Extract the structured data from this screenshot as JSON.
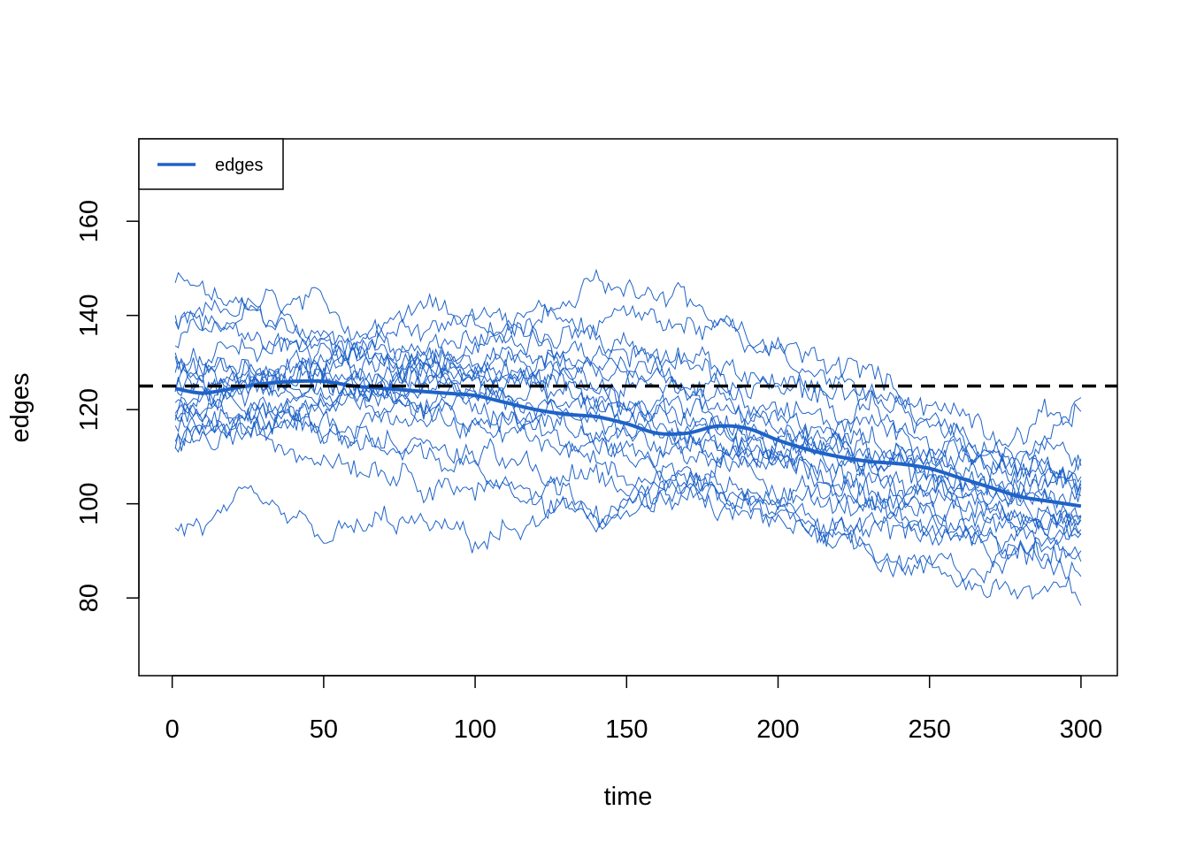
{
  "chart_data": {
    "type": "line",
    "title": "",
    "xlabel": "time",
    "ylabel": "edges",
    "xlim": [
      -11,
      312
    ],
    "ylim": [
      63.5,
      177.5
    ],
    "x_ticks": [
      0,
      50,
      100,
      150,
      200,
      250,
      300
    ],
    "x_tick_labels": [
      "0",
      "50",
      "100",
      "150",
      "200",
      "250",
      "300"
    ],
    "y_ticks": [
      80,
      100,
      120,
      140,
      160
    ],
    "y_tick_labels": [
      "80",
      "100",
      "120",
      "140",
      "160"
    ],
    "grid": false,
    "legend": {
      "position": "top-left",
      "entries": [
        "edges"
      ]
    },
    "target_line": {
      "y": 125,
      "style": "dashed",
      "color": "#000000"
    },
    "colors": {
      "series": "#1f63c8",
      "mean": "#1f63c8",
      "axes": "#000000"
    },
    "simulations": {
      "count": 20,
      "x_range": [
        1,
        300
      ],
      "anchors_x": [
        1,
        25,
        50,
        75,
        100,
        125,
        150,
        175,
        200,
        225,
        250,
        275,
        300
      ],
      "anchors_y": [
        [
          147,
          140,
          135,
          132,
          128,
          124,
          120,
          118,
          115,
          110,
          106,
          102,
          100
        ],
        [
          137,
          142,
          140,
          136,
          132,
          130,
          126,
          122,
          118,
          113,
          108,
          103,
          108
        ],
        [
          125,
          130,
          128,
          124,
          120,
          118,
          114,
          112,
          108,
          103,
          100,
          98,
          96
        ],
        [
          112,
          118,
          122,
          126,
          128,
          126,
          122,
          118,
          114,
          110,
          106,
          102,
          98
        ],
        [
          94,
          98,
          92,
          96,
          92,
          96,
          100,
          102,
          98,
          92,
          86,
          82,
          79
        ],
        [
          120,
          128,
          132,
          130,
          136,
          140,
          134,
          128,
          124,
          120,
          114,
          108,
          105
        ],
        [
          115,
          120,
          118,
          112,
          108,
          104,
          100,
          102,
          98,
          95,
          94,
          96,
          93
        ],
        [
          130,
          126,
          124,
          128,
          132,
          136,
          140,
          138,
          132,
          128,
          122,
          116,
          120
        ],
        [
          122,
          124,
          130,
          136,
          140,
          135,
          130,
          126,
          120,
          116,
          112,
          108,
          102
        ],
        [
          118,
          114,
          112,
          108,
          104,
          100,
          98,
          100,
          96,
          90,
          86,
          88,
          92
        ],
        [
          128,
          132,
          136,
          140,
          138,
          132,
          128,
          122,
          116,
          112,
          106,
          100,
          98
        ],
        [
          113,
          116,
          120,
          124,
          122,
          118,
          112,
          108,
          104,
          100,
          96,
          94,
          90
        ],
        [
          136,
          140,
          134,
          128,
          124,
          122,
          118,
          114,
          110,
          106,
          102,
          100,
          96
        ],
        [
          121,
          118,
          116,
          120,
          124,
          128,
          132,
          130,
          126,
          122,
          118,
          112,
          110
        ],
        [
          125,
          122,
          118,
          114,
          110,
          106,
          104,
          108,
          112,
          114,
          110,
          106,
          104
        ],
        [
          119,
          124,
          128,
          132,
          130,
          126,
          120,
          116,
          110,
          104,
          98,
          94,
          98
        ],
        [
          132,
          128,
          124,
          120,
          116,
          112,
          108,
          104,
          100,
          96,
          94,
          90,
          88
        ],
        [
          116,
          120,
          124,
          128,
          134,
          142,
          146,
          140,
          134,
          126,
          118,
          110,
          104
        ],
        [
          124,
          128,
          126,
          122,
          118,
          114,
          110,
          106,
          104,
          100,
          96,
          92,
          95
        ],
        [
          140,
          136,
          132,
          128,
          124,
          120,
          116,
          112,
          110,
          108,
          104,
          100,
          122
        ]
      ]
    },
    "mean_series": {
      "x": [
        1,
        10,
        20,
        30,
        40,
        50,
        60,
        70,
        80,
        90,
        100,
        110,
        120,
        130,
        140,
        150,
        160,
        170,
        180,
        190,
        200,
        210,
        220,
        230,
        240,
        250,
        260,
        270,
        280,
        290,
        300
      ],
      "y": [
        124.5,
        123.5,
        124.5,
        125.5,
        126,
        126,
        125,
        124.5,
        124,
        123.5,
        123,
        121.5,
        120,
        119,
        118.5,
        117,
        115,
        115,
        116.5,
        116,
        113.5,
        111.5,
        110,
        109,
        108.5,
        107.5,
        105.5,
        103.5,
        101.5,
        100.5,
        99.5
      ]
    }
  }
}
